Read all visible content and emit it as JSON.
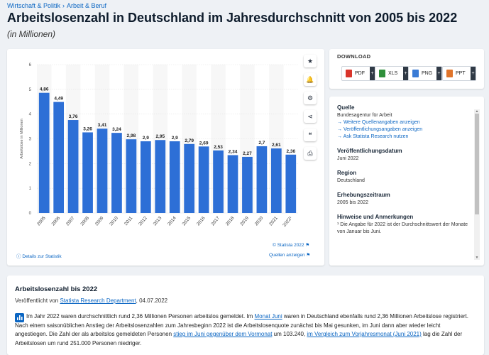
{
  "breadcrumb": {
    "items": [
      "Wirtschaft & Politik",
      "Arbeit & Beruf"
    ],
    "separator": "›"
  },
  "page": {
    "title": "Arbeitslosenzahl in Deutschland im Jahresdurchschnitt von 2005 bis 2022",
    "subtitle": "(in Millionen)"
  },
  "chart_data": {
    "type": "bar",
    "categories": [
      "2005",
      "2006",
      "2007",
      "2008",
      "2009",
      "2010",
      "2011",
      "2012",
      "2013",
      "2014",
      "2015",
      "2016",
      "2017",
      "2018",
      "2019",
      "2020",
      "2021",
      "2022¹"
    ],
    "values": [
      4.86,
      4.49,
      3.76,
      3.26,
      3.41,
      3.24,
      2.98,
      2.9,
      2.95,
      2.9,
      2.79,
      2.69,
      2.53,
      2.34,
      2.27,
      2.7,
      2.61,
      2.36
    ],
    "value_labels": [
      "4,86",
      "4,49",
      "3,76",
      "3,26",
      "3,41",
      "3,24",
      "2,98",
      "2,9",
      "2,95",
      "2,9",
      "2,79",
      "2,69",
      "2,53",
      "2,34",
      "2,27",
      "2,7",
      "2,61",
      "2,36"
    ],
    "ylabel": "Arbeitslose in Millionen",
    "ylim": [
      0,
      6
    ],
    "yticks": [
      0,
      1,
      2,
      3,
      4,
      5,
      6
    ],
    "grid": true,
    "colors": {
      "bar": "#2d6fd6",
      "band": "#f7f7f7"
    }
  },
  "chart_footer": {
    "copyright": "© Statista 2022",
    "details_link": "Details zur Statistik",
    "sources_link": "Quellen anzeigen"
  },
  "toolbar": {
    "icons": [
      "star-icon",
      "bell-icon",
      "gear-icon",
      "share-icon",
      "quote-icon",
      "print-icon"
    ],
    "glyphs": [
      "★",
      "🔔",
      "⚙",
      "⋖",
      "❝",
      "⎙"
    ]
  },
  "download": {
    "title": "DOWNLOAD",
    "buttons": [
      {
        "label": "PDF",
        "color": "#d9352b"
      },
      {
        "label": "XLS",
        "color": "#2f8f3a"
      },
      {
        "label": "PNG",
        "color": "#3a7bd5"
      },
      {
        "label": "PPT",
        "color": "#e0742a"
      }
    ]
  },
  "info": {
    "source_heading": "Quelle",
    "source_text": "Bundesagentur für Arbeit",
    "links": [
      "Weitere Quellenangaben anzeigen",
      "Veröffentlichungsangaben anzeigen",
      "Ask Statista Research nutzen"
    ],
    "pub_date_heading": "Veröffentlichungsdatum",
    "pub_date": "Juni 2022",
    "region_heading": "Region",
    "region": "Deutschland",
    "period_heading": "Erhebungszeitraum",
    "period": "2005 bis 2022",
    "notes_heading": "Hinweise und Anmerkungen",
    "notes": "¹ Die Angabe für 2022 ist der Durchschnittswert der Monate von Januar bis Juni."
  },
  "description": {
    "title": "Arbeitslosenzahl bis 2022",
    "published_prefix": "Veröffentlicht von",
    "publisher": "Statista Research Department",
    "published_date": ", 04.07.2022",
    "p1": "Im Jahr 2022 waren durchschnittlich rund 2,36 Millionen Personen arbeitslos gemeldet. Im ",
    "link1": "Monat Juni",
    "p2": " waren in Deutschland ebenfalls rund 2,36 Millionen Arbeitslose registriert. Nach einem saisonüblichen Anstieg der Arbeitslosenzahlen zum Jahresbeginn 2022 ist die Arbeitslosenquote zunächst bis Mai gesunken, im Juni dann aber wieder leicht angestiegen. Die Zahl der als arbeitslos gemeldeten Personen ",
    "link2": "stieg im Juni gegenüber dem Vormonat",
    "p3": " um 103.240, ",
    "link3": "im Vergleich zum Vorjahresmonat (Juni 2021)",
    "p4": " lag die Zahl der Arbeitslosen um rund 251.000 Personen niedriger."
  }
}
